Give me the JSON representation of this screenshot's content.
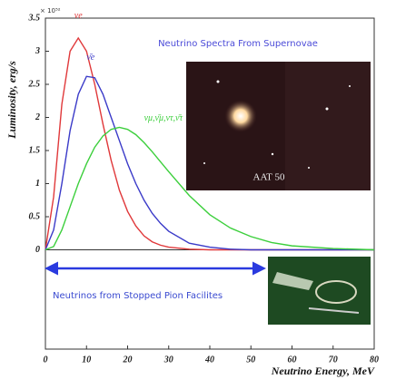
{
  "chart_data": {
    "type": "line",
    "title": "Neutrino Spectra From Supernovae",
    "y_label": "Luminosity, erg/s",
    "x_label": "Neutrino Energy, MeV",
    "y_multiplier": "× 10⁵²",
    "annotation": "Neutrinos from Stopped Pion Facilites",
    "image_caption": "AAT 50",
    "x": [
      0,
      2,
      4,
      6,
      8,
      10,
      12,
      14,
      16,
      18,
      20,
      22,
      24,
      26,
      28,
      30,
      35,
      40,
      45,
      50,
      55,
      60,
      70,
      80
    ],
    "series": [
      {
        "name": "νe",
        "color": "#e0383a",
        "values": [
          0,
          0.8,
          2.2,
          3.0,
          3.2,
          3.0,
          2.5,
          1.9,
          1.35,
          0.9,
          0.58,
          0.36,
          0.21,
          0.12,
          0.07,
          0.04,
          0.01,
          0,
          0,
          0,
          0,
          0,
          0,
          0
        ]
      },
      {
        "name": "ν̄e",
        "color": "#3a3ac8",
        "values": [
          0,
          0.3,
          1.0,
          1.8,
          2.35,
          2.62,
          2.6,
          2.35,
          2.0,
          1.65,
          1.3,
          1.0,
          0.75,
          0.55,
          0.4,
          0.28,
          0.1,
          0.04,
          0.01,
          0,
          0,
          0,
          0,
          0
        ]
      },
      {
        "name": "νμ,ν̄μ,ντ,ν̄τ",
        "color": "#3ccf3c",
        "values": [
          0,
          0.05,
          0.3,
          0.65,
          1.0,
          1.3,
          1.55,
          1.72,
          1.82,
          1.85,
          1.82,
          1.74,
          1.62,
          1.48,
          1.33,
          1.18,
          0.82,
          0.53,
          0.33,
          0.2,
          0.11,
          0.06,
          0.02,
          0
        ]
      }
    ],
    "xlim": [
      0,
      80
    ],
    "xticks": [
      0,
      10,
      20,
      30,
      40,
      50,
      60,
      70,
      80
    ],
    "ylim": [
      -1.5,
      3.5
    ],
    "yticks": [
      0,
      0.5,
      1,
      1.5,
      2,
      2.5,
      3,
      3.5
    ]
  }
}
